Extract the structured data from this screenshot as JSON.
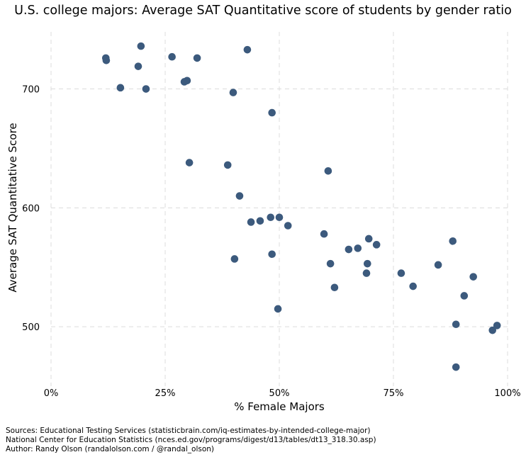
{
  "chart_data": {
    "type": "scatter",
    "title": "U.S. college majors: Average SAT Quantitative score of students by gender ratio",
    "xlabel": "% Female Majors",
    "ylabel": "Average SAT Quantitative Score",
    "xlim": [
      0,
      100
    ],
    "ylim": [
      450,
      748
    ],
    "xticks": [
      0,
      25,
      50,
      75,
      100
    ],
    "xtick_labels": [
      "0%",
      "25%",
      "50%",
      "75%",
      "100%"
    ],
    "yticks": [
      500,
      600,
      700
    ],
    "ytick_labels": [
      "500",
      "600",
      "700"
    ],
    "grid": true,
    "color": "#3c5a7d",
    "points": [
      [
        12.0,
        726
      ],
      [
        12.1,
        724
      ],
      [
        19.7,
        736
      ],
      [
        19.1,
        719
      ],
      [
        15.2,
        701
      ],
      [
        20.8,
        700
      ],
      [
        26.5,
        727
      ],
      [
        32.0,
        726
      ],
      [
        29.2,
        706
      ],
      [
        29.8,
        707
      ],
      [
        43.0,
        733
      ],
      [
        39.9,
        697
      ],
      [
        48.4,
        680
      ],
      [
        30.3,
        638
      ],
      [
        38.7,
        636
      ],
      [
        60.7,
        631
      ],
      [
        41.3,
        610
      ],
      [
        43.8,
        588
      ],
      [
        45.8,
        589
      ],
      [
        48.1,
        592
      ],
      [
        50.0,
        592
      ],
      [
        51.9,
        585
      ],
      [
        59.8,
        578
      ],
      [
        40.2,
        557
      ],
      [
        48.4,
        561
      ],
      [
        61.2,
        553
      ],
      [
        62.1,
        533
      ],
      [
        65.2,
        565
      ],
      [
        67.2,
        566
      ],
      [
        69.6,
        574
      ],
      [
        71.3,
        569
      ],
      [
        69.3,
        553
      ],
      [
        69.1,
        545
      ],
      [
        49.7,
        515
      ],
      [
        76.7,
        545
      ],
      [
        79.3,
        534
      ],
      [
        84.8,
        552
      ],
      [
        88.0,
        572
      ],
      [
        92.5,
        542
      ],
      [
        90.5,
        526
      ],
      [
        88.7,
        502
      ],
      [
        88.7,
        466
      ],
      [
        96.7,
        497
      ],
      [
        97.7,
        501
      ]
    ]
  },
  "footer": {
    "line1": "Sources: Educational Testing Services (statisticbrain.com/iq-estimates-by-intended-college-major)",
    "line2": "National Center for Education Statistics (nces.ed.gov/programs/digest/d13/tables/dt13_318.30.asp)",
    "line3": "Author: Randy Olson (randalolson.com / @randal_olson)"
  }
}
